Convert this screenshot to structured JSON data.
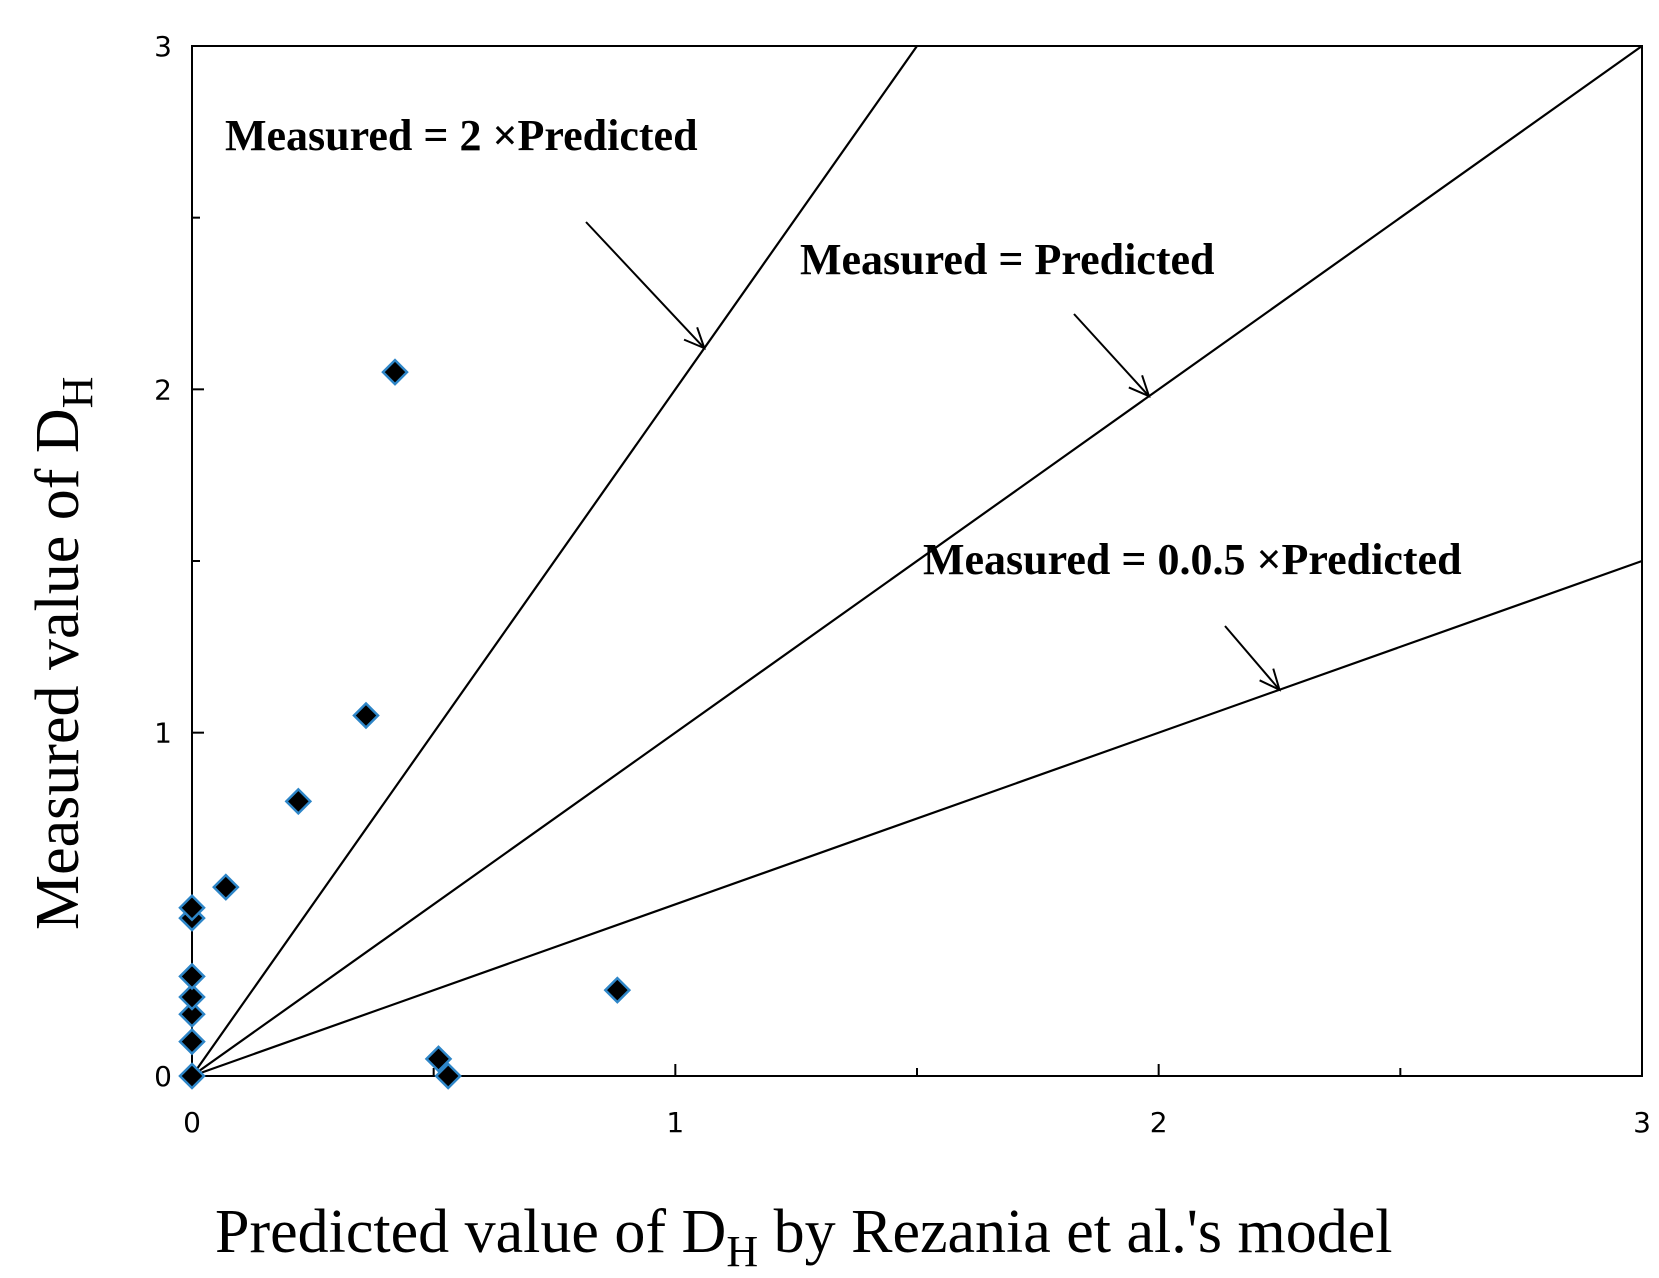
{
  "chart_data": {
    "type": "scatter",
    "xlabel": "Predicted value of D",
    "xlabel_subscript": "H",
    "xlabel_suffix": " by Rezania et al.'s model",
    "ylabel": "Measured value of D",
    "ylabel_subscript": "H",
    "xlim": [
      0,
      3
    ],
    "ylim": [
      0,
      3
    ],
    "xticks": [
      0,
      1,
      2,
      3
    ],
    "yticks": [
      0,
      1,
      2,
      3
    ],
    "xtick_labels": [
      "0",
      "1",
      "2",
      "3"
    ],
    "ytick_labels": [
      "0",
      "1",
      "2",
      "3"
    ],
    "grid": false,
    "colors": {
      "marker_fill": "#000000",
      "marker_edge": "#2e86c8",
      "line": "#000000"
    },
    "reference_lines": [
      {
        "name": "Measured = 2 ×Predicted",
        "slope": 2
      },
      {
        "name": "Measured = Predicted",
        "slope": 1
      },
      {
        "name": "Measured = 0.0.5 ×Predicted",
        "slope": 0.5
      }
    ],
    "annotations": [
      {
        "text": "Measured = 2 ×Predicted",
        "points_to_x": 1.06,
        "slope": 2
      },
      {
        "text": "Measured = Predicted",
        "points_to_x": 1.98,
        "slope": 1
      },
      {
        "text": "Measured = 0.0.5 ×Predicted",
        "points_to_x": 2.25,
        "slope": 0.5
      }
    ],
    "series": [
      {
        "name": "data",
        "points": [
          {
            "x": 0.0,
            "y": 0.0
          },
          {
            "x": 0.0,
            "y": 0.1
          },
          {
            "x": 0.0,
            "y": 0.18
          },
          {
            "x": 0.0,
            "y": 0.23
          },
          {
            "x": 0.0,
            "y": 0.29
          },
          {
            "x": 0.0,
            "y": 0.46
          },
          {
            "x": 0.0,
            "y": 0.49
          },
          {
            "x": 0.07,
            "y": 0.55
          },
          {
            "x": 0.22,
            "y": 0.8
          },
          {
            "x": 0.36,
            "y": 1.05
          },
          {
            "x": 0.42,
            "y": 2.05
          },
          {
            "x": 0.51,
            "y": 0.05
          },
          {
            "x": 0.53,
            "y": 0.0
          },
          {
            "x": 0.88,
            "y": 0.25
          }
        ]
      }
    ]
  }
}
